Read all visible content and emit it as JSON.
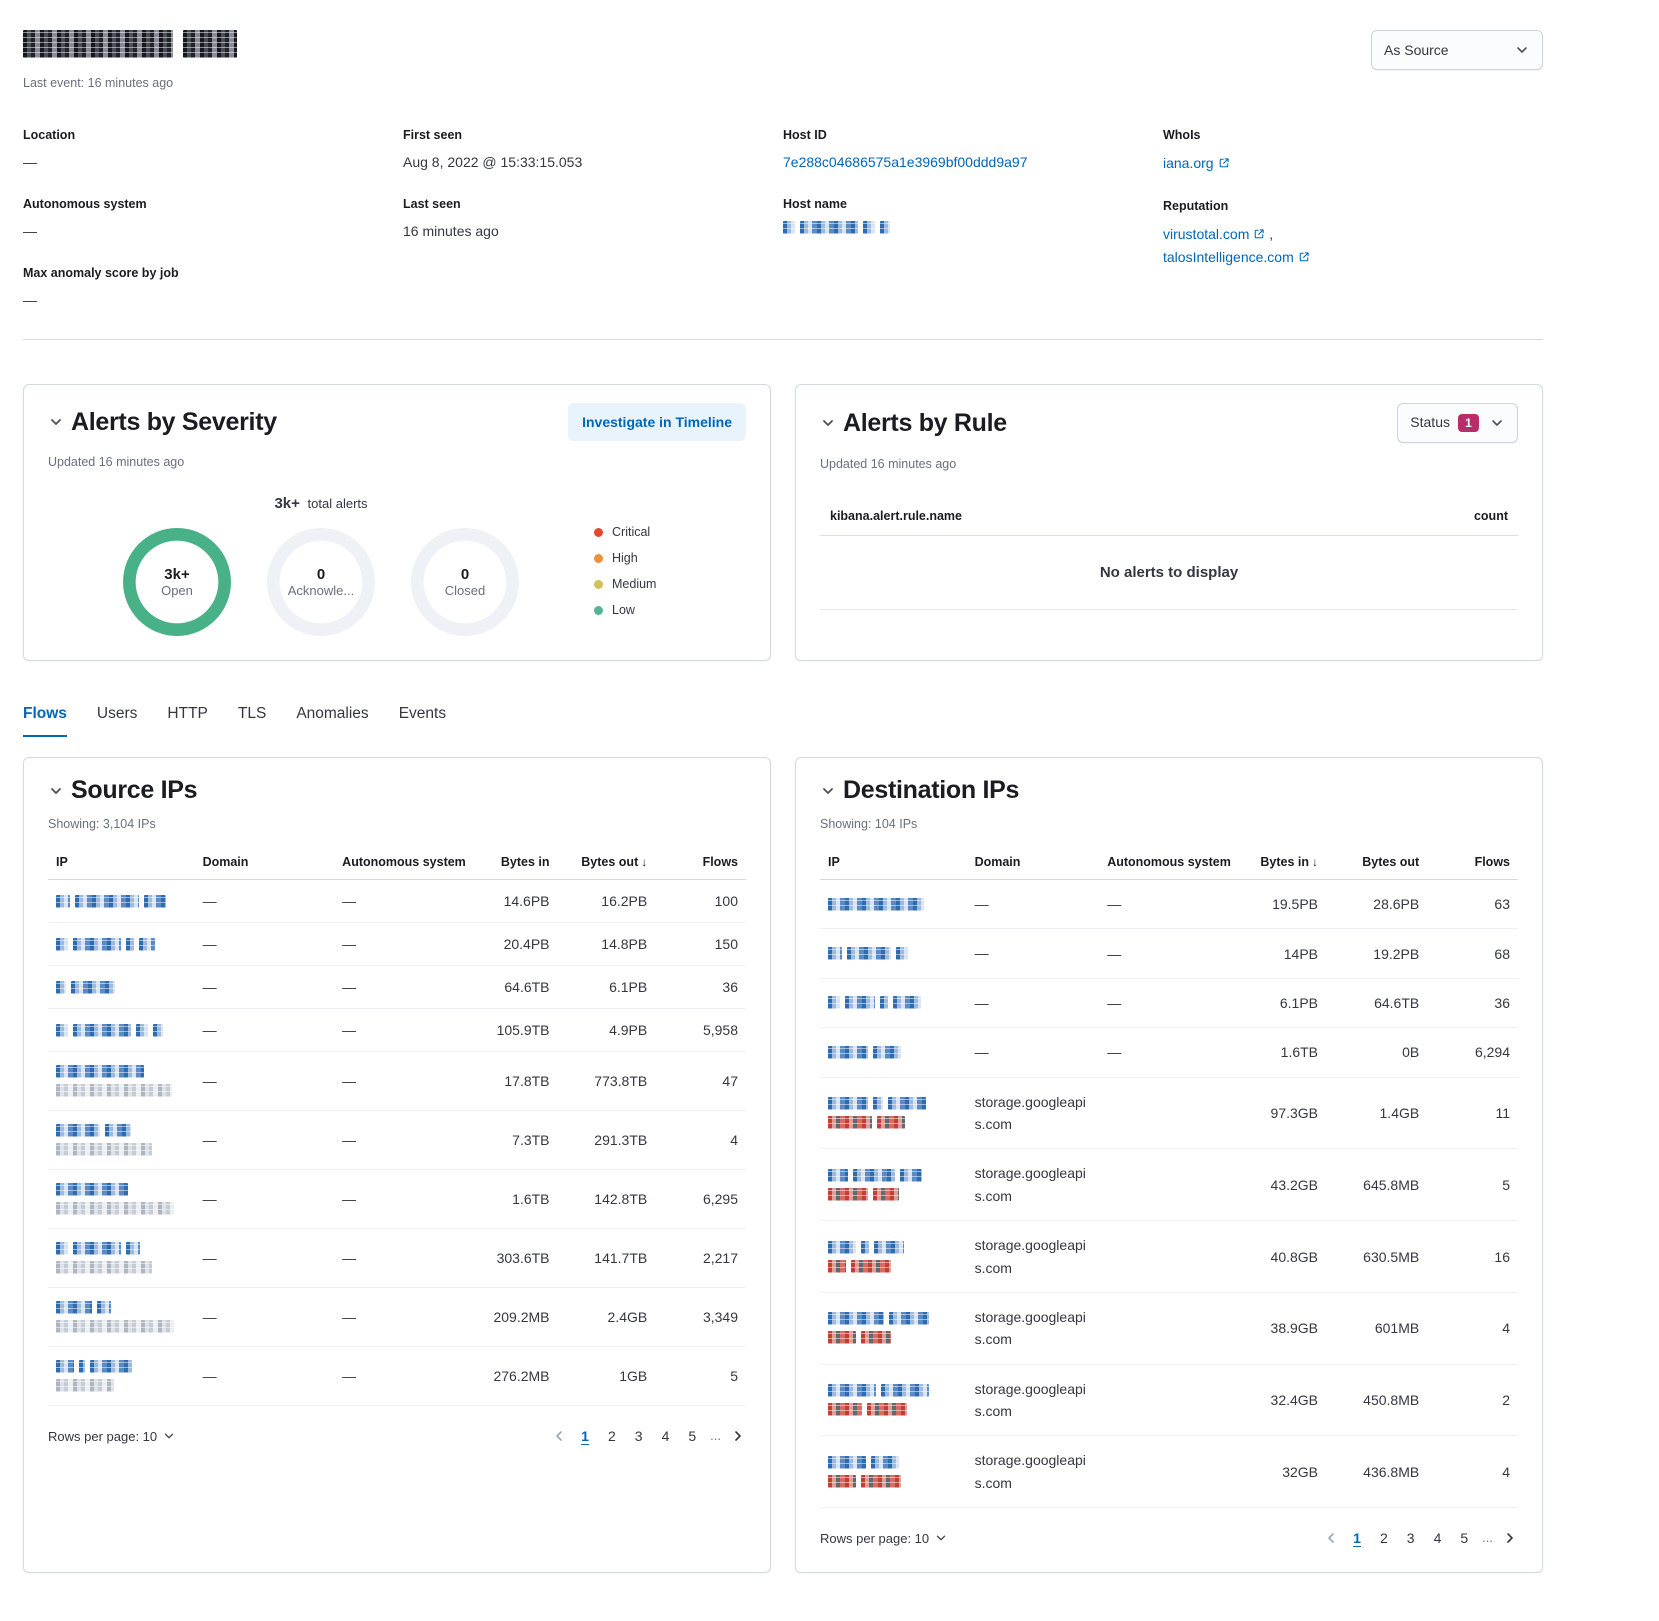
{
  "colors": {
    "primary_link": "#0066b8",
    "ring_open": "#48b187",
    "ring_empty": "#eef2f7",
    "status_badge": "#b82e68"
  },
  "header": {
    "title_redacted_mask": {
      "c": "dark",
      "seg": [
        150,
        54
      ]
    },
    "last_event": "Last event: 16 minutes ago",
    "as_source_label": "As Source"
  },
  "overview": {
    "columns": [
      [
        {
          "label": "Location",
          "type": "text",
          "value": "—"
        },
        {
          "label": "Autonomous system",
          "type": "text",
          "value": "—"
        },
        {
          "label": "Max anomaly score by job",
          "type": "text",
          "value": "—"
        }
      ],
      [
        {
          "label": "First seen",
          "type": "text",
          "value": "Aug 8, 2022 @ 15:33:15.053"
        },
        {
          "label": "Last seen",
          "type": "text",
          "value": "16 minutes ago"
        }
      ],
      [
        {
          "label": "Host ID",
          "type": "link",
          "value": "7e288c04686575a1e3969bf00ddd9a97"
        },
        {
          "label": "Host name",
          "type": "redacted",
          "mask": {
            "c": "blue",
            "seg": [
              12,
              58,
              12,
              10
            ]
          }
        }
      ],
      [
        {
          "label": "WhoIs",
          "type": "extlinks",
          "links": [
            "iana.org"
          ]
        },
        {
          "label": "Reputation",
          "type": "extlinks",
          "links": [
            "virustotal.com",
            "talosIntelligence.com"
          ]
        }
      ]
    ]
  },
  "alerts_severity": {
    "title": "Alerts by Severity",
    "investigate_label": "Investigate in Timeline",
    "updated": "Updated 16 minutes ago",
    "total_value": "3k+",
    "total_suffix": " total alerts",
    "donuts": [
      {
        "value": "3k+",
        "label": "Open",
        "state": "open"
      },
      {
        "value": "0",
        "label": "Acknowle...",
        "state": "empty"
      },
      {
        "value": "0",
        "label": "Closed",
        "state": "empty"
      }
    ],
    "legend": [
      {
        "label": "Critical",
        "color": "#e4482f"
      },
      {
        "label": "High",
        "color": "#e8923b"
      },
      {
        "label": "Medium",
        "color": "#d4c05e"
      },
      {
        "label": "Low",
        "color": "#54b399"
      }
    ]
  },
  "alerts_rule": {
    "title": "Alerts by Rule",
    "status_label": "Status",
    "status_count": "1",
    "updated": "Updated 16 minutes ago",
    "name_column": "kibana.alert.rule.name",
    "count_column": "count",
    "empty_message": "No alerts to display"
  },
  "tabs": [
    {
      "label": "Flows",
      "active": true
    },
    {
      "label": "Users",
      "active": false
    },
    {
      "label": "HTTP",
      "active": false
    },
    {
      "label": "TLS",
      "active": false
    },
    {
      "label": "Anomalies",
      "active": false
    },
    {
      "label": "Events",
      "active": false
    }
  ],
  "source_ips": {
    "title": "Source IPs",
    "showing": "Showing: 3,104 IPs",
    "columns": [
      {
        "label": "IP",
        "align": "left"
      },
      {
        "label": "Domain",
        "align": "left"
      },
      {
        "label": "Autonomous system",
        "align": "left"
      },
      {
        "label": "Bytes in",
        "align": "right"
      },
      {
        "label": "Bytes out",
        "align": "right",
        "sorted": "desc"
      },
      {
        "label": "Flows",
        "align": "right"
      }
    ],
    "rows": [
      {
        "mask1": {
          "c": "blue",
          "seg": [
            14,
            64,
            22
          ]
        },
        "domain": "—",
        "autonomous_system": "—",
        "bytes_in": "14.6PB",
        "bytes_out": "16.2PB",
        "flows": "100"
      },
      {
        "mask1": {
          "c": "blue",
          "seg": [
            12,
            48,
            8,
            16
          ]
        },
        "domain": "—",
        "autonomous_system": "—",
        "bytes_in": "20.4PB",
        "bytes_out": "14.8PB",
        "flows": "150"
      },
      {
        "mask1": {
          "c": "blue",
          "seg": [
            10,
            44
          ]
        },
        "domain": "—",
        "autonomous_system": "—",
        "bytes_in": "64.6TB",
        "bytes_out": "6.1PB",
        "flows": "36"
      },
      {
        "mask1": {
          "c": "blue",
          "seg": [
            12,
            58,
            12,
            10
          ]
        },
        "domain": "—",
        "autonomous_system": "—",
        "bytes_in": "105.9TB",
        "bytes_out": "4.9PB",
        "flows": "5,958"
      },
      {
        "mask1": {
          "c": "blue",
          "seg": [
            88
          ]
        },
        "mask2": {
          "c": "gray",
          "seg": [
            116
          ]
        },
        "domain": "—",
        "autonomous_system": "—",
        "bytes_in": "17.8TB",
        "bytes_out": "773.8TB",
        "flows": "47"
      },
      {
        "mask1": {
          "c": "blue",
          "seg": [
            44,
            26
          ]
        },
        "mask2": {
          "c": "gray",
          "seg": [
            96
          ]
        },
        "domain": "—",
        "autonomous_system": "—",
        "bytes_in": "7.3TB",
        "bytes_out": "291.3TB",
        "flows": "4"
      },
      {
        "mask1": {
          "c": "blue",
          "seg": [
            72
          ]
        },
        "mask2": {
          "c": "gray",
          "seg": [
            118
          ]
        },
        "domain": "—",
        "autonomous_system": "—",
        "bytes_in": "1.6TB",
        "bytes_out": "142.8TB",
        "flows": "6,295"
      },
      {
        "mask1": {
          "c": "blue",
          "seg": [
            12,
            48,
            14
          ]
        },
        "mask2": {
          "c": "gray",
          "seg": [
            96
          ]
        },
        "domain": "—",
        "autonomous_system": "—",
        "bytes_in": "303.6TB",
        "bytes_out": "141.7TB",
        "flows": "2,217"
      },
      {
        "mask1": {
          "c": "blue",
          "seg": [
            36,
            14
          ]
        },
        "mask2": {
          "c": "gray",
          "seg": [
            118
          ]
        },
        "domain": "—",
        "autonomous_system": "—",
        "bytes_in": "209.2MB",
        "bytes_out": "2.4GB",
        "flows": "3,349"
      },
      {
        "mask1": {
          "c": "blue",
          "seg": [
            18,
            6,
            42
          ]
        },
        "mask2": {
          "c": "gray",
          "seg": [
            58
          ]
        },
        "domain": "—",
        "autonomous_system": "—",
        "bytes_in": "276.2MB",
        "bytes_out": "1GB",
        "flows": "5"
      }
    ],
    "rows_per_page": "Rows per page: 10",
    "pagination": {
      "pages": [
        "1",
        "2",
        "3",
        "4",
        "5"
      ],
      "active": "1",
      "ellipsis": "..."
    }
  },
  "dest_ips": {
    "title": "Destination IPs",
    "showing": "Showing: 104 IPs",
    "columns": [
      {
        "label": "IP",
        "align": "left"
      },
      {
        "label": "Domain",
        "align": "left"
      },
      {
        "label": "Autonomous system",
        "align": "left"
      },
      {
        "label": "Bytes in",
        "align": "right",
        "sorted": "desc"
      },
      {
        "label": "Bytes out",
        "align": "right"
      },
      {
        "label": "Flows",
        "align": "right"
      }
    ],
    "rows": [
      {
        "mask1": {
          "c": "blue",
          "seg": [
            96
          ]
        },
        "domain": "—",
        "autonomous_system": "—",
        "bytes_in": "19.5PB",
        "bytes_out": "28.6PB",
        "flows": "63"
      },
      {
        "mask1": {
          "c": "blue",
          "seg": [
            14,
            44,
            12
          ]
        },
        "domain": "—",
        "autonomous_system": "—",
        "bytes_in": "14PB",
        "bytes_out": "19.2PB",
        "flows": "68"
      },
      {
        "mask1": {
          "c": "blue",
          "seg": [
            12,
            30,
            8,
            28
          ]
        },
        "domain": "—",
        "autonomous_system": "—",
        "bytes_in": "6.1PB",
        "bytes_out": "64.6TB",
        "flows": "36"
      },
      {
        "mask1": {
          "c": "blue",
          "seg": [
            40,
            28
          ]
        },
        "domain": "—",
        "autonomous_system": "—",
        "bytes_in": "1.6TB",
        "bytes_out": "0B",
        "flows": "6,294"
      },
      {
        "mask1": {
          "c": "blue",
          "seg": [
            40,
            10,
            38
          ]
        },
        "mask2": {
          "c": "red",
          "seg": [
            44,
            28
          ]
        },
        "domain": "storage.googleapis.com",
        "autonomous_system": "",
        "bytes_in": "97.3GB",
        "bytes_out": "1.4GB",
        "flows": "11"
      },
      {
        "mask1": {
          "c": "blue",
          "seg": [
            20,
            42,
            22
          ]
        },
        "mask2": {
          "c": "red",
          "seg": [
            40,
            26
          ]
        },
        "domain": "storage.googleapis.com",
        "autonomous_system": "",
        "bytes_in": "43.2GB",
        "bytes_out": "645.8MB",
        "flows": "5"
      },
      {
        "mask1": {
          "c": "blue",
          "seg": [
            28,
            8,
            30
          ]
        },
        "mask2": {
          "c": "red",
          "seg": [
            18,
            40
          ]
        },
        "domain": "storage.googleapis.com",
        "autonomous_system": "",
        "bytes_in": "40.8GB",
        "bytes_out": "630.5MB",
        "flows": "16"
      },
      {
        "mask1": {
          "c": "blue",
          "seg": [
            56,
            40
          ]
        },
        "mask2": {
          "c": "red",
          "seg": [
            28,
            30
          ]
        },
        "domain": "storage.googleapis.com",
        "autonomous_system": "",
        "bytes_in": "38.9GB",
        "bytes_out": "601MB",
        "flows": "4"
      },
      {
        "mask1": {
          "c": "blue",
          "seg": [
            48,
            48
          ]
        },
        "mask2": {
          "c": "red",
          "seg": [
            34,
            40
          ]
        },
        "domain": "storage.googleapis.com",
        "autonomous_system": "",
        "bytes_in": "32.4GB",
        "bytes_out": "450.8MB",
        "flows": "2"
      },
      {
        "mask1": {
          "c": "blue",
          "seg": [
            38,
            28
          ]
        },
        "mask2": {
          "c": "red",
          "seg": [
            28,
            40
          ]
        },
        "domain": "storage.googleapis.com",
        "autonomous_system": "",
        "bytes_in": "32GB",
        "bytes_out": "436.8MB",
        "flows": "4"
      }
    ],
    "rows_per_page": "Rows per page: 10",
    "pagination": {
      "pages": [
        "1",
        "2",
        "3",
        "4",
        "5"
      ],
      "active": "1",
      "ellipsis": "..."
    }
  }
}
